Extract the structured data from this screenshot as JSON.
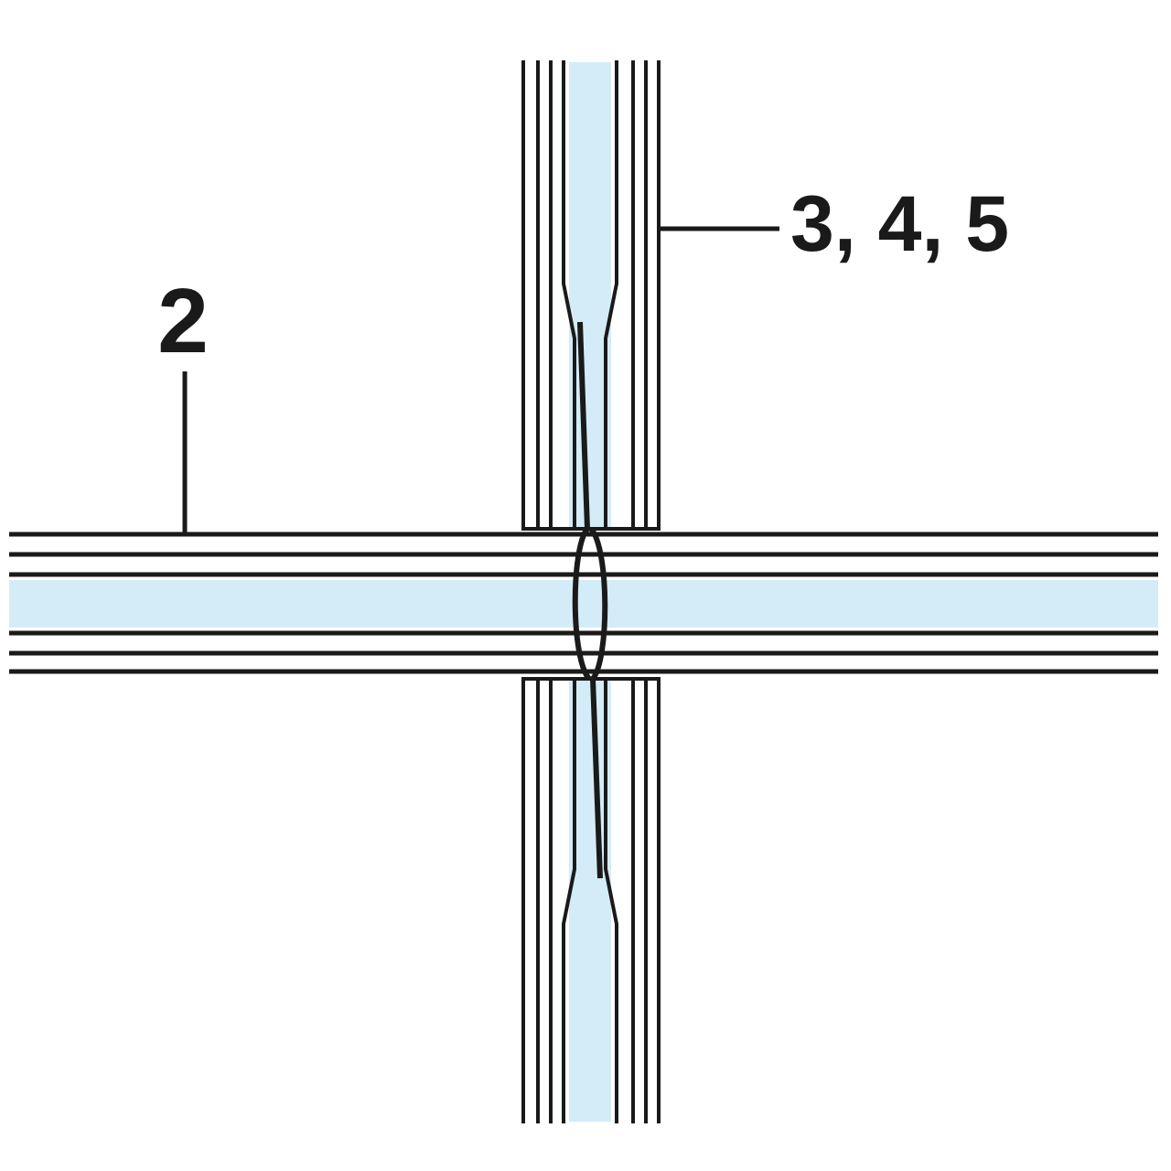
{
  "labels": {
    "horizontal_profile": "2",
    "vertical_profile": "3, 4, 5"
  },
  "colors": {
    "stroke": "#1a1a1a",
    "fill": "#d4ecf7",
    "background": "#ffffff"
  }
}
